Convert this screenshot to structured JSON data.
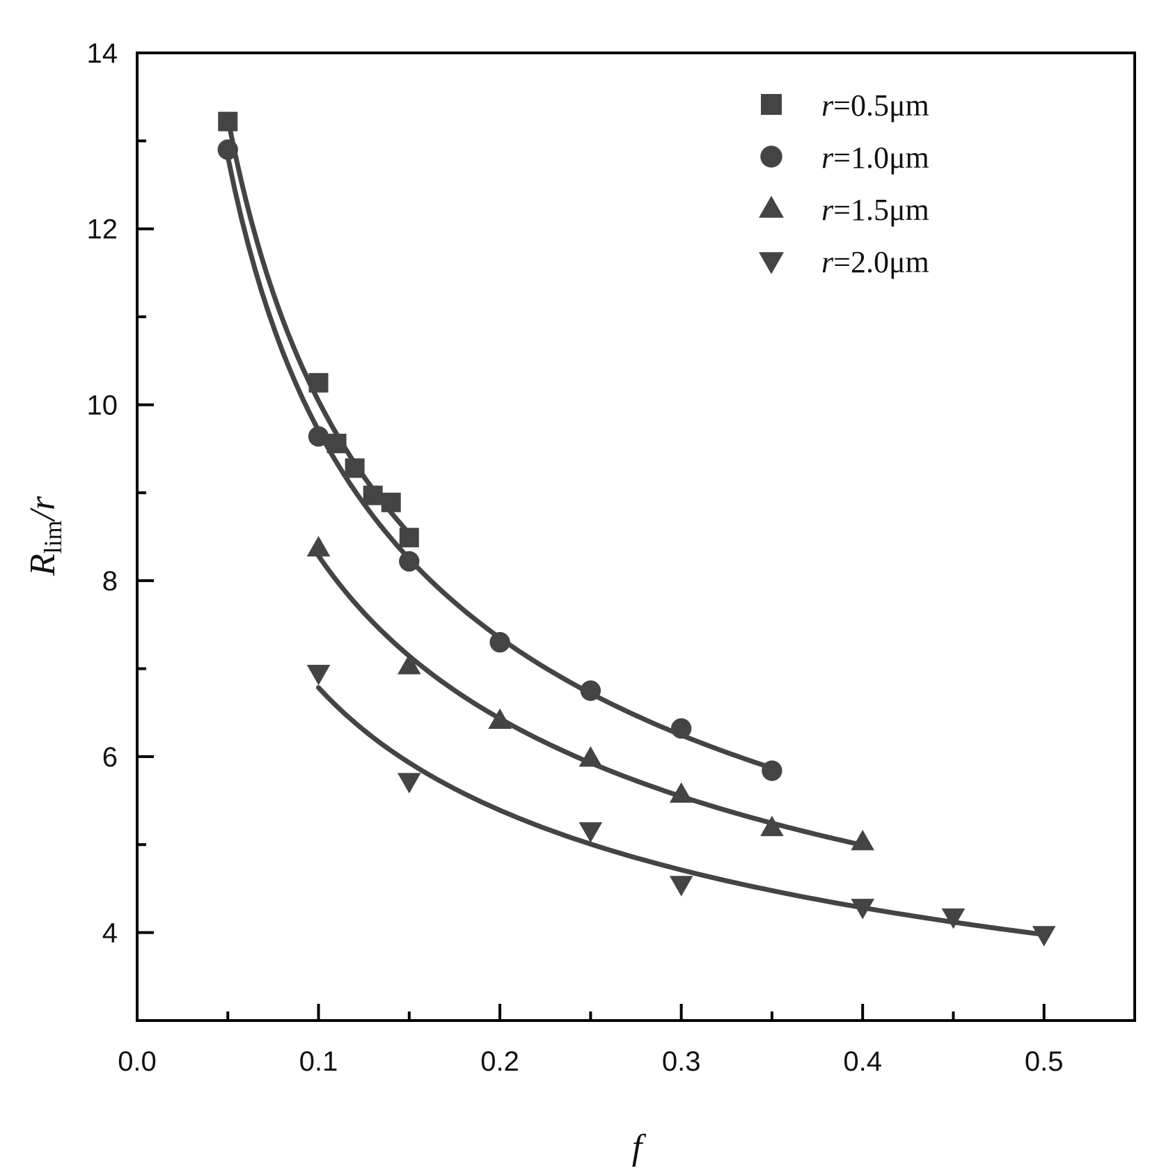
{
  "chart_data": {
    "type": "scatter",
    "title": "",
    "xlabel": "f",
    "ylabel": "R_lim/r",
    "ylabel_parts": {
      "main": "R",
      "sub": "lim",
      "suffix": "/r"
    },
    "xlim": [
      0,
      0.55
    ],
    "ylim": [
      3,
      14
    ],
    "xticks": [
      0.0,
      0.1,
      0.2,
      0.3,
      0.4,
      0.5
    ],
    "xtick_labels": [
      "0.0",
      "0.1",
      "0.2",
      "0.3",
      "0.4",
      "0.5"
    ],
    "xminor": [
      0.05,
      0.15,
      0.25,
      0.35,
      0.45
    ],
    "yticks": [
      4,
      6,
      8,
      10,
      12,
      14
    ],
    "ytick_labels": [
      "4",
      "6",
      "8",
      "10",
      "12",
      "14"
    ],
    "yminor": [
      5,
      7,
      9,
      11,
      13
    ],
    "grid": false,
    "legend_position": "upper right",
    "series": [
      {
        "name": "r=0.5μm",
        "label_var": "r",
        "label_rest": "=0.5μm",
        "marker": "square",
        "color": "#444444",
        "fit": "curve",
        "x": [
          0.05,
          0.1,
          0.11,
          0.12,
          0.13,
          0.14,
          0.15
        ],
        "values": [
          13.22,
          10.25,
          9.56,
          9.28,
          8.97,
          8.89,
          8.49
        ]
      },
      {
        "name": "r=1.0μm",
        "label_var": "r",
        "label_rest": "=1.0μm",
        "marker": "circle",
        "color": "#444444",
        "fit": "curve",
        "x": [
          0.05,
          0.1,
          0.15,
          0.2,
          0.25,
          0.3,
          0.35
        ],
        "values": [
          12.9,
          9.64,
          8.22,
          7.3,
          6.75,
          6.32,
          5.84
        ]
      },
      {
        "name": "r=1.5μm",
        "label_var": "r",
        "label_rest": "=1.5μm",
        "marker": "triangle-up",
        "color": "#444444",
        "fit": "curve",
        "x": [
          0.1,
          0.15,
          0.2,
          0.25,
          0.3,
          0.35,
          0.4
        ],
        "values": [
          8.37,
          7.03,
          6.41,
          5.98,
          5.57,
          5.19,
          5.03
        ]
      },
      {
        "name": "r=2.0μm",
        "label_var": "r",
        "label_rest": "=2.0μm",
        "marker": "triangle-down",
        "color": "#444444",
        "fit": "curve",
        "x": [
          0.1,
          0.15,
          0.25,
          0.3,
          0.4,
          0.45,
          0.5
        ],
        "values": [
          6.95,
          5.72,
          5.16,
          4.55,
          4.29,
          4.18,
          3.98
        ]
      }
    ]
  },
  "style": {
    "axis_color": "#000000",
    "marker_color": "#444444",
    "line_color": "#444444"
  }
}
